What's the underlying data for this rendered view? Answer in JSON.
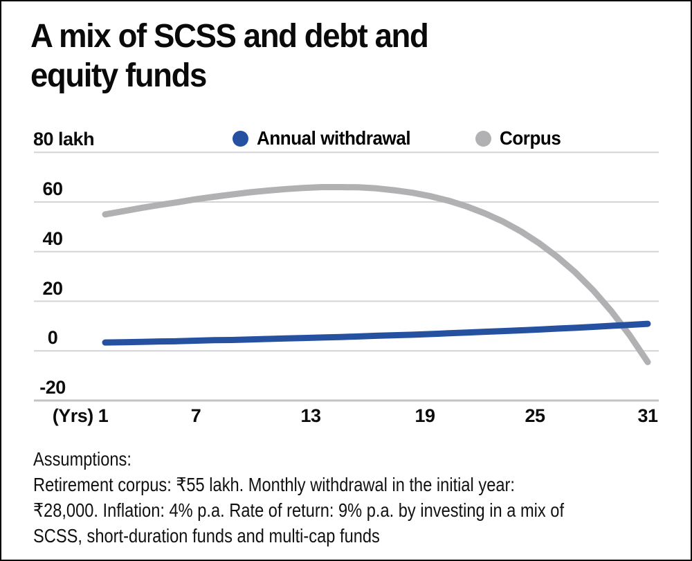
{
  "figure": {
    "title_lines": [
      "A mix of SCSS and debt and",
      "equity funds"
    ]
  },
  "chart_data": {
    "type": "line",
    "title": "A mix of SCSS and debt and equity funds",
    "unit": "lakh",
    "xlabel": "(Yrs)",
    "ylabel": "lakh",
    "ylim": [
      -20,
      80
    ],
    "grid": "horizontal",
    "legend_position": "top",
    "x": [
      1,
      2,
      3,
      4,
      5,
      6,
      7,
      8,
      9,
      10,
      11,
      12,
      13,
      14,
      15,
      16,
      17,
      18,
      19,
      20,
      21,
      22,
      23,
      24,
      25,
      26,
      27,
      28,
      29,
      30,
      31
    ],
    "x_tick_labels": [
      "(Yrs) 1",
      "7",
      "13",
      "19",
      "25",
      "31"
    ],
    "y_ticks": [
      {
        "label": "80 lakh",
        "value": 80
      },
      {
        "label": "60",
        "value": 60
      },
      {
        "label": "40",
        "value": 40
      },
      {
        "label": "20",
        "value": 20
      },
      {
        "label": "0",
        "value": 0
      },
      {
        "label": "-20",
        "value": -20
      }
    ],
    "series": [
      {
        "name": "Annual withdrawal",
        "color": "#2651a0",
        "values": [
          3.4,
          3.5,
          3.6,
          3.8,
          3.9,
          4.1,
          4.3,
          4.4,
          4.6,
          4.8,
          5.0,
          5.2,
          5.4,
          5.6,
          5.8,
          6.1,
          6.3,
          6.5,
          6.8,
          7.1,
          7.4,
          7.7,
          8.0,
          8.3,
          8.6,
          9.0,
          9.3,
          9.7,
          10.1,
          10.5,
          10.9
        ]
      },
      {
        "name": "Corpus",
        "color": "#b1b1b4",
        "values": [
          55,
          56.3,
          57.6,
          58.8,
          59.9,
          61.1,
          62.1,
          63.0,
          63.9,
          64.6,
          65.2,
          65.7,
          66.0,
          66.0,
          65.9,
          65.5,
          64.7,
          63.7,
          62.3,
          60.5,
          58.2,
          55.4,
          52.1,
          48.1,
          43.4,
          37.9,
          31.6,
          24.3,
          15.9,
          6.3,
          -4.5
        ]
      }
    ]
  },
  "assumptions": {
    "lines": [
      "Assumptions:",
      "Retirement corpus: ₹55 lakh. Monthly withdrawal in the initial year:",
      "₹28,000. Inflation: 4% p.a. Rate of return: 9% p.a. by investing in a mix of",
      "SCSS, short-duration funds and multi-cap funds"
    ]
  },
  "colors": {
    "grid": "#d4d4d6",
    "axis_bottom": "#c3c3c5",
    "background": "#ffffff",
    "border": "#000000"
  }
}
